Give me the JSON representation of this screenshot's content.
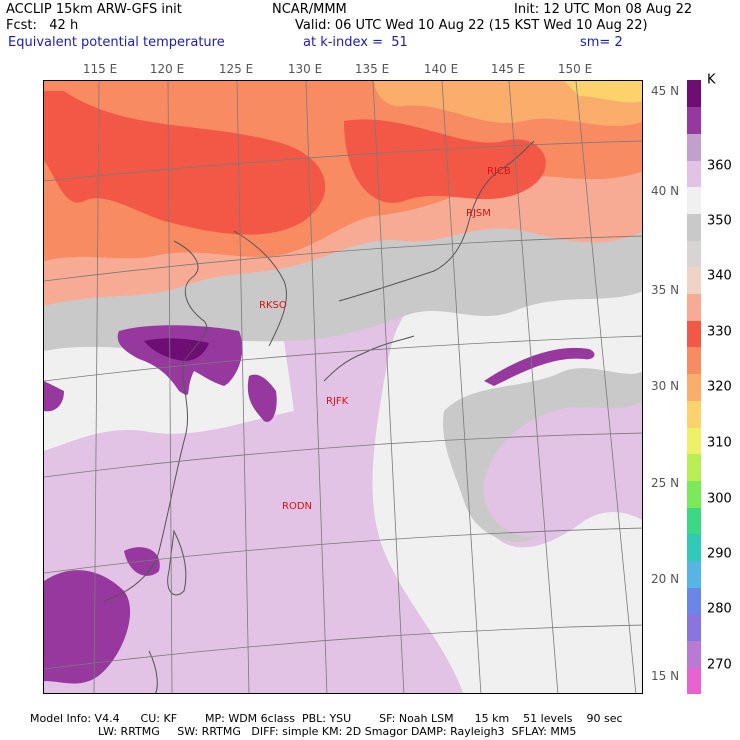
{
  "header": {
    "model": "ACCLIP 15km ARW-GFS init",
    "forecast": "Fcst:   42 h",
    "field": "Equivalent potential temperature",
    "org": "NCAR/MMM",
    "valid": "Valid: 06 UTC Wed 10 Aug 22 (15 KST Wed 10 Aug 22)",
    "level": "at k-index =  51",
    "init": "Init: 12 UTC Mon 08 Aug 22",
    "smoothing": "sm= 2"
  },
  "lon_ticks": [
    "115 E",
    "120 E",
    "125 E",
    "130 E",
    "135 E",
    "140 E",
    "145 E",
    "150 E"
  ],
  "lat_ticks": [
    "45 N",
    "40 N",
    "35 N",
    "30 N",
    "25 N",
    "20 N",
    "15 N"
  ],
  "stations": [
    {
      "id": "RJCB"
    },
    {
      "id": "RJSM"
    },
    {
      "id": "RKSO"
    },
    {
      "id": "RJFK"
    },
    {
      "id": "RODN"
    }
  ],
  "colorbar": {
    "unit": "K",
    "labels": [
      "360",
      "350",
      "340",
      "330",
      "320",
      "310",
      "300",
      "290",
      "280",
      "270"
    ],
    "colors": [
      "#e863cf",
      "#b87ad2",
      "#8a74dd",
      "#6a86e8",
      "#56b5e5",
      "#33c9b9",
      "#3dd886",
      "#7ce95a",
      "#b9ef55",
      "#eef068",
      "#fbd26b",
      "#fbae6c",
      "#f98b63",
      "#f25845",
      "#f8ab94",
      "#f0d3c7",
      "#d7d4d3",
      "#c9c9c9",
      "#f0f0f0",
      "#e2c2e5",
      "#c29fcd",
      "#96389e",
      "#6e0e75"
    ]
  },
  "footer": {
    "line1": "Model Info: V4.4      CU: KF        MP: WDM 6class  PBL: YSU        SF: Noah LSM      15 km    51 levels    90 sec",
    "line2": "LW: RRTMG     SW: RRTMG   DIFF: simple KM: 2D Smagor DAMP: Rayleigh3  SFLAY: MM5"
  }
}
